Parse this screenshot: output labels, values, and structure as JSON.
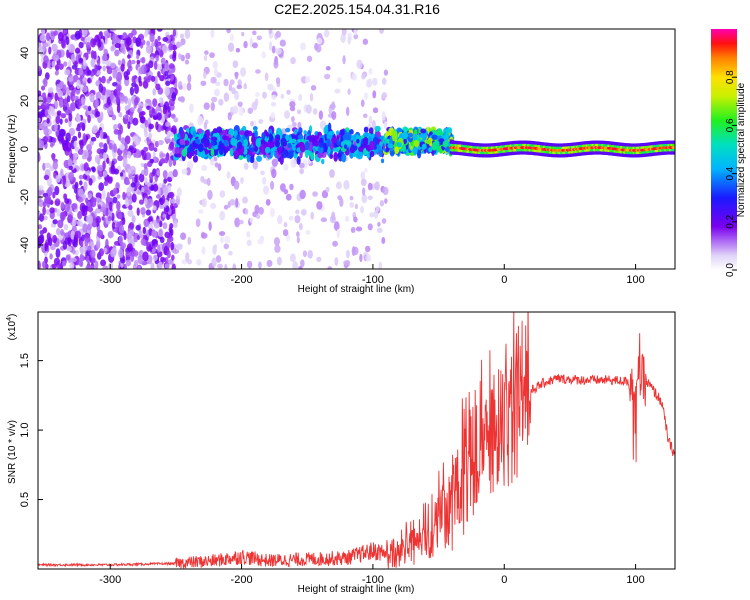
{
  "title": "C2E2.2025.154.04.31.R16",
  "chart_data": [
    {
      "type": "heatmap",
      "xlabel": "Height of straight line (km)",
      "ylabel": "Frequency (Hz)",
      "xlim": [
        -355,
        130
      ],
      "ylim": [
        -50,
        50
      ],
      "x_ticks": [
        -300,
        -200,
        -100,
        0,
        100
      ],
      "x_tick_labels": [
        "-300",
        "-200",
        "-100",
        "0",
        "100"
      ],
      "y_ticks": [
        -40,
        -20,
        0,
        20,
        40
      ],
      "y_tick_labels": [
        "-40",
        "-20",
        "0",
        "20",
        "40"
      ],
      "colorbar": {
        "label": "Normalized spectral amplitude",
        "range": [
          0,
          1
        ],
        "ticks": [
          0.0,
          0.2,
          0.4,
          0.6,
          0.8
        ],
        "tick_labels": [
          "0.0",
          "0.2",
          "0.4",
          "0.6",
          "0.8"
        ]
      },
      "regions": [
        {
          "x": [
            -355,
            -250
          ],
          "freq_center": 0,
          "freq_spread": 50,
          "amplitude": 0.15,
          "density": "high"
        },
        {
          "x": [
            -250,
            -90
          ],
          "freq_center": 0,
          "freq_spread": 50,
          "amplitude": 0.08,
          "density": "low"
        },
        {
          "x": [
            -250,
            -90
          ],
          "freq_center": 2,
          "freq_spread": 8,
          "amplitude": 0.35,
          "density": "high"
        },
        {
          "x": [
            -90,
            -40
          ],
          "freq_center": 3,
          "freq_spread": 6,
          "amplitude": 0.55,
          "density": "high"
        },
        {
          "x": [
            -40,
            130
          ],
          "freq_center": 0,
          "freq_spread": 2,
          "amplitude": 0.9,
          "density": "line"
        }
      ]
    },
    {
      "type": "line",
      "xlabel": "Height of straight line (km)",
      "ylabel": "SNR (10 * v/v)",
      "y_scale_label": "(x10",
      "y_scale_exp": "4",
      "y_scale_close": ")",
      "xlim": [
        -355,
        130
      ],
      "ylim": [
        0,
        1.85
      ],
      "x_ticks": [
        -300,
        -200,
        -100,
        0,
        100
      ],
      "x_tick_labels": [
        "-300",
        "-200",
        "-100",
        "0",
        "100"
      ],
      "y_ticks": [
        0.5,
        1.0,
        1.5
      ],
      "y_tick_labels": [
        "0.5",
        "1.0",
        "1.5"
      ],
      "color": "#ee3333",
      "series": [
        {
          "x": [
            -355,
            -300,
            -250,
            -220,
            -200,
            -180,
            -150,
            -120,
            -100,
            -80,
            -60,
            -40,
            -20,
            0,
            10,
            20,
            30,
            40,
            60,
            80,
            95,
            100,
            103,
            110,
            120,
            125,
            130
          ],
          "y": [
            0.03,
            0.03,
            0.04,
            0.06,
            0.09,
            0.06,
            0.07,
            0.08,
            0.13,
            0.1,
            0.2,
            0.45,
            0.8,
            1.02,
            1.12,
            1.28,
            1.34,
            1.37,
            1.36,
            1.36,
            1.35,
            1.34,
            1.38,
            1.33,
            1.2,
            0.92,
            0.82
          ]
        }
      ]
    }
  ]
}
